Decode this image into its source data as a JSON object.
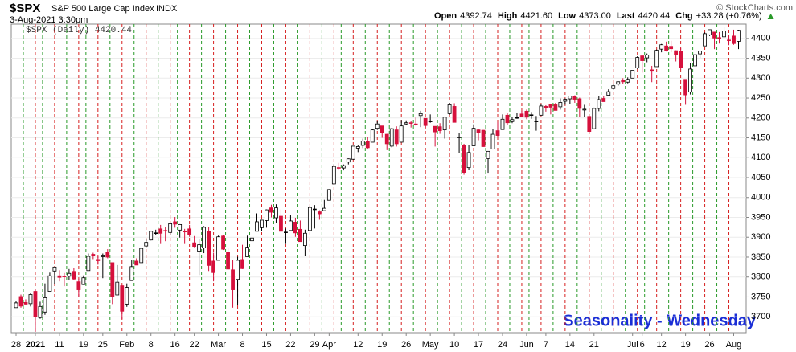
{
  "chart_data": {
    "type": "candlestick",
    "title": "$SPX",
    "subtitle": "S&P 500 Large Cap Index",
    "exchange": "INDX",
    "date": "3-Aug-2021 3:30pm",
    "quote": [
      {
        "label": "Open",
        "value": "4392.74"
      },
      {
        "label": "High",
        "value": "4421.60"
      },
      {
        "label": "Low",
        "value": "4373.00"
      },
      {
        "label": "Last",
        "value": "4420.44"
      },
      {
        "label": "Chg",
        "value": "+33.28 (+0.76%)"
      }
    ],
    "credit": "© StockCharts.com",
    "legend": "$SPX (Daily) 4420.44",
    "annotation": "Seasonality - Wednesday",
    "up_color": "#000000",
    "down_color": "#d6103c",
    "marker_colors": [
      "#2a9a2a",
      "#d62020"
    ],
    "annotation_color": "#1a2ed6",
    "ylim": [
      3660,
      4436
    ],
    "yticks": [
      3700,
      3750,
      3800,
      3850,
      3900,
      3950,
      4000,
      4050,
      4100,
      4150,
      4200,
      4250,
      4300,
      4350,
      4400
    ],
    "grid": true,
    "categories": [
      "28",
      null,
      null,
      null,
      "2021",
      null,
      null,
      null,
      null,
      "11",
      null,
      null,
      null,
      null,
      "19",
      null,
      null,
      null,
      "25",
      null,
      null,
      null,
      null,
      "Feb",
      null,
      null,
      null,
      null,
      "8",
      null,
      null,
      null,
      null,
      "16",
      null,
      null,
      null,
      "22",
      null,
      null,
      null,
      null,
      "Mar",
      null,
      null,
      null,
      null,
      "8",
      null,
      null,
      null,
      null,
      "15",
      null,
      null,
      null,
      null,
      "22",
      null,
      null,
      null,
      null,
      "29",
      null,
      null,
      "Apr",
      null,
      null,
      null,
      null,
      null,
      "12",
      null,
      null,
      null,
      null,
      "19",
      null,
      null,
      null,
      null,
      "26",
      null,
      null,
      null,
      null,
      "May",
      null,
      null,
      null,
      null,
      "10",
      null,
      null,
      null,
      null,
      "17",
      null,
      null,
      null,
      null,
      "24",
      null,
      null,
      null,
      null,
      "Jun",
      null,
      null,
      null,
      "7",
      null,
      null,
      null,
      null,
      "14",
      null,
      null,
      null,
      null,
      "21",
      null,
      null,
      null,
      null,
      null,
      null,
      null,
      "Jul",
      null,
      "6",
      null,
      null,
      null,
      "12",
      null,
      null,
      null,
      null,
      "19",
      null,
      null,
      null,
      null,
      "26",
      null,
      null,
      null,
      null,
      "Aug",
      null
    ],
    "seasonality_days": [
      2,
      6,
      11,
      15,
      20,
      25,
      30,
      34,
      39,
      44,
      49,
      54,
      59,
      64,
      68,
      73,
      78,
      83,
      88,
      93,
      98,
      103,
      107,
      112,
      117,
      122,
      127,
      131,
      136,
      141,
      146
    ],
    "ohlc": [
      [
        3723,
        3740,
        3723,
        3735
      ],
      [
        3751,
        3756,
        3723,
        3727
      ],
      [
        3736,
        3744,
        3730,
        3732
      ],
      [
        3733,
        3760,
        3726,
        3756
      ],
      [
        3764,
        3769,
        3662,
        3700
      ],
      [
        3698,
        3738,
        3695,
        3726
      ],
      [
        3712,
        3784,
        3705,
        3748
      ],
      [
        3764,
        3811,
        3764,
        3803
      ],
      [
        3815,
        3826,
        3783,
        3825
      ],
      [
        3803,
        3817,
        3789,
        3799
      ],
      [
        3802,
        3810,
        3777,
        3801
      ],
      [
        3802,
        3820,
        3792,
        3809
      ],
      [
        3814,
        3823,
        3792,
        3795
      ],
      [
        3788,
        3796,
        3750,
        3768
      ],
      [
        3781,
        3804,
        3780,
        3798
      ],
      [
        3816,
        3859,
        3816,
        3852
      ],
      [
        3857,
        3861,
        3845,
        3853
      ],
      [
        3844,
        3852,
        3831,
        3841
      ],
      [
        3851,
        3859,
        3797,
        3855
      ],
      [
        3862,
        3870,
        3847,
        3850
      ],
      [
        3836,
        3836,
        3732,
        3751
      ],
      [
        3755,
        3830,
        3755,
        3787
      ],
      [
        3778,
        3778,
        3694,
        3714
      ],
      [
        3732,
        3784,
        3725,
        3774
      ],
      [
        3791,
        3843,
        3791,
        3826
      ],
      [
        3840,
        3847,
        3831,
        3830
      ],
      [
        3836,
        3872,
        3836,
        3872
      ],
      [
        3878,
        3895,
        3875,
        3887
      ],
      [
        3893,
        3916,
        3892,
        3915
      ],
      [
        3910,
        3919,
        3906,
        3911
      ],
      [
        3921,
        3931,
        3885,
        3910
      ],
      [
        3917,
        3925,
        3890,
        3916
      ],
      [
        3912,
        3937,
        3905,
        3934
      ],
      [
        3939,
        3951,
        3924,
        3933
      ],
      [
        3918,
        3933,
        3899,
        3932
      ],
      [
        3915,
        3921,
        3885,
        3914
      ],
      [
        3921,
        3931,
        3901,
        3907
      ],
      [
        3886,
        3903,
        3875,
        3877
      ],
      [
        3865,
        3895,
        3805,
        3881
      ],
      [
        3873,
        3928,
        3860,
        3925
      ],
      [
        3915,
        3925,
        3815,
        3829
      ],
      [
        3840,
        3861,
        3789,
        3811
      ],
      [
        3842,
        3904,
        3842,
        3901
      ],
      [
        3903,
        3906,
        3868,
        3870
      ],
      [
        3863,
        3874,
        3818,
        3820
      ],
      [
        3818,
        3843,
        3723,
        3768
      ],
      [
        3794,
        3851,
        3730,
        3842
      ],
      [
        3844,
        3881,
        3820,
        3821
      ],
      [
        3851,
        3904,
        3851,
        3875
      ],
      [
        3891,
        3918,
        3885,
        3898
      ],
      [
        3915,
        3960,
        3915,
        3939
      ],
      [
        3924,
        3944,
        3915,
        3943
      ],
      [
        3942,
        3970,
        3924,
        3969
      ],
      [
        3974,
        3982,
        3950,
        3963
      ],
      [
        3949,
        3983,
        3935,
        3974
      ],
      [
        3953,
        3970,
        3914,
        3915
      ],
      [
        3913,
        3922,
        3885,
        3913
      ],
      [
        3917,
        3955,
        3917,
        3941
      ],
      [
        3938,
        3949,
        3901,
        3911
      ],
      [
        3920,
        3942,
        3889,
        3889
      ],
      [
        3879,
        3919,
        3854,
        3910
      ],
      [
        3917,
        3979,
        3917,
        3975
      ],
      [
        3970,
        3981,
        3922,
        3971
      ],
      [
        3964,
        3968,
        3944,
        3959
      ],
      [
        3967,
        3994,
        3967,
        3973
      ],
      [
        3993,
        4021,
        3993,
        4020
      ],
      [
        4034,
        4084,
        4034,
        4078
      ],
      [
        4075,
        4087,
        4068,
        4074
      ],
      [
        4074,
        4083,
        4068,
        4080
      ],
      [
        4089,
        4098,
        4083,
        4097
      ],
      [
        4096,
        4129,
        4095,
        4129
      ],
      [
        4124,
        4131,
        4114,
        4128
      ],
      [
        4131,
        4148,
        4124,
        4142
      ],
      [
        4141,
        4152,
        4123,
        4125
      ],
      [
        4139,
        4173,
        4139,
        4170
      ],
      [
        4174,
        4192,
        4170,
        4185
      ],
      [
        4180,
        4180,
        4150,
        4163
      ],
      [
        4159,
        4160,
        4119,
        4135
      ],
      [
        4129,
        4175,
        4126,
        4173
      ],
      [
        4170,
        4179,
        4128,
        4135
      ],
      [
        4139,
        4195,
        4139,
        4180
      ],
      [
        4185,
        4194,
        4182,
        4188
      ],
      [
        4188,
        4193,
        4176,
        4187
      ],
      [
        4185,
        4201,
        4181,
        4183
      ],
      [
        4206,
        4218,
        4177,
        4211
      ],
      [
        4199,
        4199,
        4175,
        4181
      ],
      [
        4192,
        4209,
        4188,
        4192
      ],
      [
        4179,
        4179,
        4128,
        4165
      ],
      [
        4178,
        4187,
        4160,
        4168
      ],
      [
        4170,
        4202,
        4148,
        4202
      ],
      [
        4211,
        4238,
        4208,
        4233
      ],
      [
        4229,
        4237,
        4189,
        4189
      ],
      [
        4151,
        4163,
        4111,
        4152
      ],
      [
        4131,
        4135,
        4057,
        4063
      ],
      [
        4075,
        4131,
        4069,
        4113
      ],
      [
        4130,
        4184,
        4130,
        4174
      ],
      [
        4170,
        4172,
        4144,
        4163
      ],
      [
        4169,
        4170,
        4127,
        4128
      ],
      [
        4098,
        4116,
        4062,
        4116
      ],
      [
        4122,
        4172,
        4122,
        4159
      ],
      [
        4168,
        4189,
        4151,
        4156
      ],
      [
        4171,
        4209,
        4171,
        4197
      ],
      [
        4207,
        4213,
        4183,
        4188
      ],
      [
        4191,
        4203,
        4187,
        4196
      ],
      [
        4201,
        4213,
        4198,
        4201
      ],
      [
        4210,
        4218,
        4204,
        4204
      ],
      [
        4217,
        4221,
        4197,
        4202
      ],
      [
        4207,
        4215,
        4198,
        4208
      ],
      [
        4191,
        4205,
        4168,
        4192
      ],
      [
        4207,
        4234,
        4206,
        4230
      ],
      [
        4229,
        4232,
        4216,
        4226
      ],
      [
        4233,
        4236,
        4209,
        4227
      ],
      [
        4233,
        4238,
        4219,
        4219
      ],
      [
        4228,
        4249,
        4221,
        4239
      ],
      [
        4242,
        4249,
        4233,
        4247
      ],
      [
        4248,
        4255,
        4235,
        4255
      ],
      [
        4255,
        4257,
        4238,
        4247
      ],
      [
        4248,
        4251,
        4202,
        4224
      ],
      [
        4220,
        4233,
        4202,
        4222
      ],
      [
        4204,
        4205,
        4165,
        4166
      ],
      [
        4173,
        4226,
        4173,
        4224
      ],
      [
        4224,
        4255,
        4217,
        4246
      ],
      [
        4249,
        4256,
        4241,
        4241
      ],
      [
        4257,
        4272,
        4256,
        4266
      ],
      [
        4274,
        4286,
        4271,
        4281
      ],
      [
        4285,
        4292,
        4281,
        4291
      ],
      [
        4294,
        4300,
        4286,
        4291
      ],
      [
        4290,
        4302,
        4287,
        4297
      ],
      [
        4300,
        4320,
        4300,
        4320
      ],
      [
        4326,
        4355,
        4323,
        4352
      ],
      [
        4356,
        4357,
        4314,
        4344
      ],
      [
        4351,
        4362,
        4340,
        4358
      ],
      [
        4321,
        4331,
        4290,
        4320
      ],
      [
        4329,
        4372,
        4329,
        4370
      ],
      [
        4373,
        4386,
        4365,
        4384
      ],
      [
        4381,
        4392,
        4367,
        4369
      ],
      [
        4380,
        4394,
        4365,
        4374
      ],
      [
        4369,
        4370,
        4342,
        4360
      ],
      [
        4367,
        4376,
        4322,
        4327
      ],
      [
        4297,
        4297,
        4233,
        4258
      ],
      [
        4265,
        4337,
        4259,
        4323
      ],
      [
        4331,
        4359,
        4331,
        4359
      ],
      [
        4361,
        4369,
        4351,
        4368
      ],
      [
        4381,
        4415,
        4381,
        4412
      ],
      [
        4409,
        4422,
        4406,
        4422
      ],
      [
        4416,
        4416,
        4373,
        4401
      ],
      [
        4402,
        4416,
        4387,
        4400
      ],
      [
        4404,
        4430,
        4404,
        4419
      ],
      [
        4396,
        4407,
        4383,
        4395
      ],
      [
        4406,
        4422,
        4384,
        4387
      ],
      [
        4392.74,
        4421.6,
        4373,
        4420.44
      ]
    ]
  }
}
